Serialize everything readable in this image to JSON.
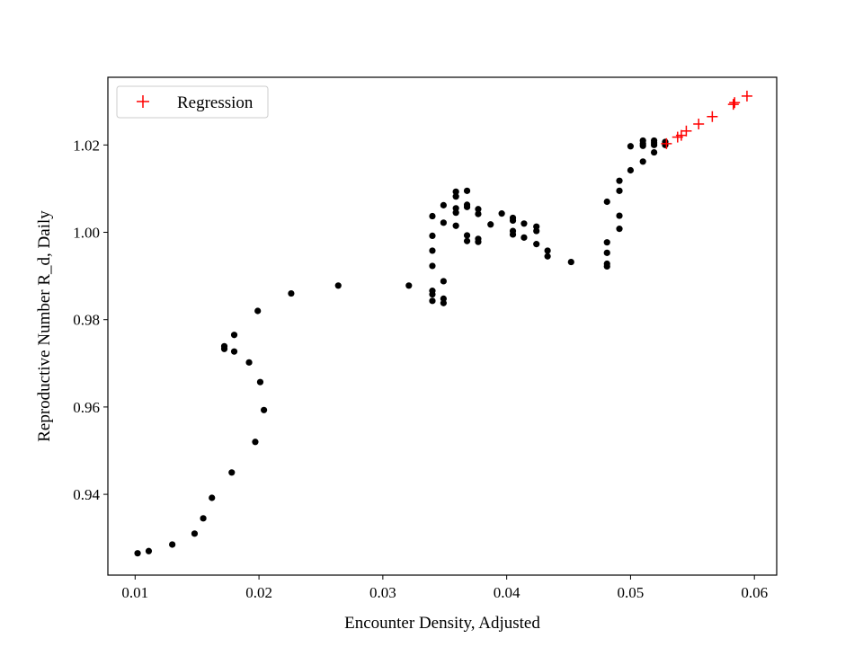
{
  "chart_data": {
    "type": "scatter",
    "title": "",
    "xlabel": "Encounter Density, Adjusted",
    "ylabel": "Reproductive Number R_d, Daily",
    "xlim": [
      0.0078,
      0.0618
    ],
    "ylim": [
      0.9215,
      1.0355
    ],
    "xticks": [
      0.01,
      0.02,
      0.03,
      0.04,
      0.05,
      0.06
    ],
    "xtick_labels": [
      "0.01",
      "0.02",
      "0.03",
      "0.04",
      "0.05",
      "0.06"
    ],
    "yticks": [
      0.94,
      0.96,
      0.98,
      1.0,
      1.02
    ],
    "ytick_labels": [
      "0.94",
      "0.96",
      "0.98",
      "1.00",
      "1.02"
    ],
    "grid": false,
    "legend": {
      "location": "upper-left",
      "entries": [
        "Regression"
      ]
    },
    "series": [
      {
        "name": "Observed",
        "marker": "dot",
        "color": "#000000",
        "in_legend": false,
        "points": [
          [
            0.0102,
            0.9265
          ],
          [
            0.0111,
            0.927
          ],
          [
            0.013,
            0.9285
          ],
          [
            0.0148,
            0.931
          ],
          [
            0.0155,
            0.9345
          ],
          [
            0.0162,
            0.9392
          ],
          [
            0.0178,
            0.945
          ],
          [
            0.0197,
            0.952
          ],
          [
            0.0204,
            0.9593
          ],
          [
            0.0201,
            0.9657
          ],
          [
            0.0192,
            0.9702
          ],
          [
            0.018,
            0.9727
          ],
          [
            0.0172,
            0.9733
          ],
          [
            0.0172,
            0.9739
          ],
          [
            0.018,
            0.9765
          ],
          [
            0.0199,
            0.982
          ],
          [
            0.0226,
            0.986
          ],
          [
            0.0264,
            0.9878
          ],
          [
            0.0321,
            0.9878
          ],
          [
            0.034,
            0.9843
          ],
          [
            0.034,
            0.9858
          ],
          [
            0.034,
            0.9866
          ],
          [
            0.0349,
            0.9838
          ],
          [
            0.0349,
            0.9848
          ],
          [
            0.0349,
            0.9888
          ],
          [
            0.034,
            0.9923
          ],
          [
            0.034,
            0.9958
          ],
          [
            0.034,
            0.9992
          ],
          [
            0.034,
            1.0037
          ],
          [
            0.0349,
            1.0062
          ],
          [
            0.0349,
            1.0022
          ],
          [
            0.0359,
            1.0015
          ],
          [
            0.0359,
            1.0045
          ],
          [
            0.0359,
            1.0055
          ],
          [
            0.0359,
            1.0082
          ],
          [
            0.0359,
            1.0093
          ],
          [
            0.0368,
            1.0095
          ],
          [
            0.0368,
            1.0063
          ],
          [
            0.0368,
            1.0058
          ],
          [
            0.0368,
            0.9993
          ],
          [
            0.0368,
            0.998
          ],
          [
            0.0377,
            0.9985
          ],
          [
            0.0377,
            0.9978
          ],
          [
            0.0377,
            1.0042
          ],
          [
            0.0377,
            1.0053
          ],
          [
            0.0387,
            1.0018
          ],
          [
            0.0396,
            1.0043
          ],
          [
            0.0405,
            1.0033
          ],
          [
            0.0405,
            1.0027
          ],
          [
            0.0405,
            1.0003
          ],
          [
            0.0405,
            0.9995
          ],
          [
            0.0414,
            1.002
          ],
          [
            0.0414,
            0.9988
          ],
          [
            0.0424,
            1.0013
          ],
          [
            0.0424,
            1.0003
          ],
          [
            0.0424,
            0.9973
          ],
          [
            0.0433,
            0.9958
          ],
          [
            0.0433,
            0.9945
          ],
          [
            0.0452,
            0.9932
          ],
          [
            0.0481,
            0.9922
          ],
          [
            0.0481,
            0.9928
          ],
          [
            0.0481,
            0.9953
          ],
          [
            0.0481,
            0.9977
          ],
          [
            0.0481,
            1.007
          ],
          [
            0.0491,
            1.0008
          ],
          [
            0.0491,
            1.0038
          ],
          [
            0.0491,
            1.0095
          ],
          [
            0.0491,
            1.0118
          ],
          [
            0.05,
            1.0142
          ],
          [
            0.05,
            1.0197
          ],
          [
            0.051,
            1.0162
          ],
          [
            0.051,
            1.0198
          ],
          [
            0.051,
            1.0203
          ],
          [
            0.051,
            1.021
          ],
          [
            0.0519,
            1.0183
          ],
          [
            0.0519,
            1.02
          ],
          [
            0.0519,
            1.0205
          ],
          [
            0.0519,
            1.021
          ],
          [
            0.0528,
            1.02
          ],
          [
            0.0528,
            1.0207
          ]
        ]
      },
      {
        "name": "Regression",
        "marker": "plus",
        "color": "#ff0000",
        "in_legend": true,
        "points": [
          [
            0.0529,
            1.0203
          ],
          [
            0.0538,
            1.0218
          ],
          [
            0.0541,
            1.0222
          ],
          [
            0.0545,
            1.0232
          ],
          [
            0.0555,
            1.0248
          ],
          [
            0.0566,
            1.0265
          ],
          [
            0.0583,
            1.0293
          ],
          [
            0.0584,
            1.0297
          ],
          [
            0.0594,
            1.0312
          ]
        ]
      }
    ]
  }
}
